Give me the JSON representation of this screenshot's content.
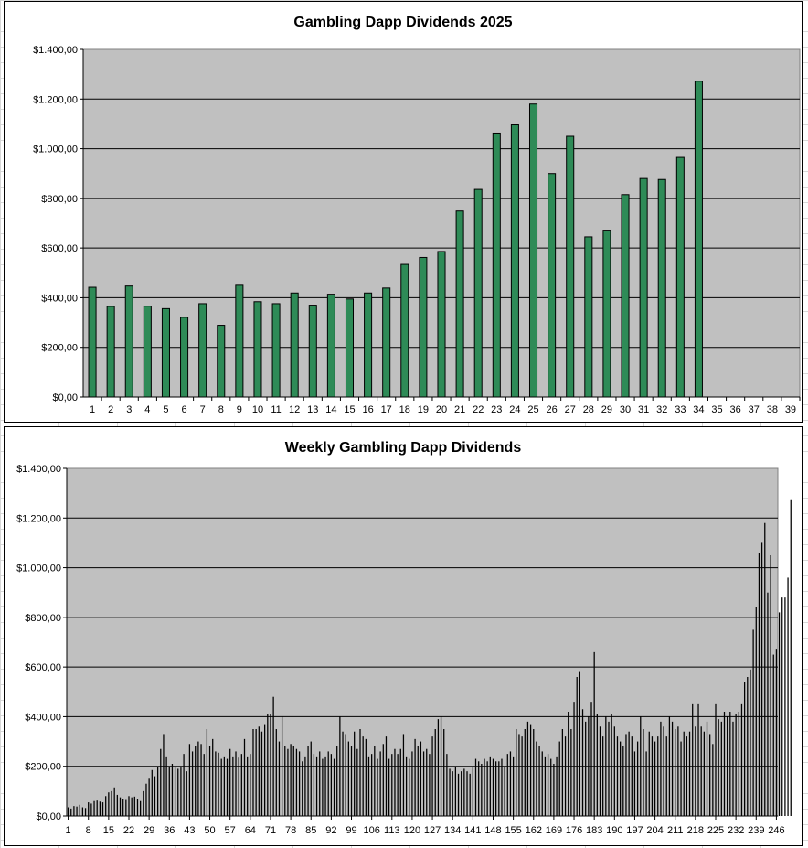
{
  "chart_data": [
    {
      "type": "bar",
      "title": "Gambling Dapp Dividends 2025",
      "xlabel": "",
      "ylabel": "",
      "ylim": [
        0,
        1400
      ],
      "y_ticks": [
        "$0,00",
        "$200,00",
        "$400,00",
        "$600,00",
        "$800,00",
        "$1.000,00",
        "$1.200,00",
        "$1.400,00"
      ],
      "categories": [
        "1",
        "2",
        "3",
        "4",
        "5",
        "6",
        "7",
        "8",
        "9",
        "10",
        "11",
        "12",
        "13",
        "14",
        "15",
        "16",
        "17",
        "18",
        "19",
        "20",
        "21",
        "22",
        "23",
        "24",
        "25",
        "26",
        "27",
        "28",
        "29",
        "30",
        "31",
        "32",
        "33",
        "34",
        "35",
        "36",
        "37",
        "38",
        "39"
      ],
      "values": [
        442,
        365,
        447,
        366,
        356,
        321,
        376,
        289,
        450,
        384,
        376,
        419,
        370,
        414,
        395,
        419,
        439,
        534,
        562,
        586,
        749,
        836,
        1063,
        1096,
        1180,
        900,
        1050,
        645,
        672,
        815,
        880,
        876,
        965,
        1272,
        null,
        null,
        null,
        null,
        null
      ],
      "bar_color": "#2e8b57",
      "plot_bg": "#c0c0c0",
      "grid": true,
      "legend": "none"
    },
    {
      "type": "bar",
      "title": "Weekly Gambling Dapp Dividends",
      "xlabel": "",
      "ylabel": "",
      "ylim": [
        0,
        1400
      ],
      "y_ticks": [
        "$0,00",
        "$200,00",
        "$400,00",
        "$600,00",
        "$800,00",
        "$1.000,00",
        "$1.200,00",
        "$1.400,00"
      ],
      "x_tick_labels": [
        "1",
        "8",
        "15",
        "22",
        "29",
        "36",
        "43",
        "50",
        "57",
        "64",
        "71",
        "78",
        "85",
        "92",
        "99",
        "106",
        "113",
        "120",
        "127",
        "134",
        "141",
        "148",
        "155",
        "162",
        "169",
        "176",
        "183",
        "190",
        "197",
        "204",
        "211",
        "218",
        "225",
        "232",
        "239",
        "246"
      ],
      "x_count": 246,
      "values": [
        35,
        30,
        40,
        38,
        45,
        35,
        32,
        55,
        50,
        60,
        62,
        58,
        55,
        80,
        95,
        100,
        115,
        85,
        75,
        70,
        68,
        80,
        75,
        78,
        70,
        60,
        100,
        130,
        150,
        185,
        160,
        200,
        270,
        330,
        240,
        200,
        210,
        200,
        190,
        195,
        250,
        180,
        290,
        260,
        280,
        300,
        290,
        250,
        350,
        280,
        310,
        260,
        255,
        230,
        240,
        230,
        270,
        240,
        260,
        235,
        250,
        310,
        240,
        250,
        350,
        350,
        360,
        340,
        370,
        410,
        410,
        480,
        350,
        300,
        400,
        280,
        270,
        290,
        280,
        270,
        260,
        220,
        240,
        280,
        300,
        250,
        240,
        260,
        230,
        240,
        260,
        250,
        230,
        280,
        400,
        340,
        330,
        300,
        280,
        340,
        270,
        350,
        320,
        310,
        240,
        250,
        280,
        230,
        260,
        290,
        320,
        230,
        250,
        270,
        250,
        270,
        330,
        240,
        230,
        260,
        310,
        280,
        300,
        260,
        270,
        250,
        320,
        350,
        390,
        400,
        350,
        250,
        190,
        180,
        200,
        170,
        180,
        190,
        180,
        170,
        200,
        230,
        220,
        210,
        230,
        220,
        240,
        230,
        220,
        220,
        230,
        200,
        250,
        260,
        240,
        350,
        330,
        320,
        350,
        380,
        370,
        350,
        300,
        280,
        260,
        240,
        250,
        230,
        210,
        240,
        300,
        350,
        320,
        420,
        350,
        460,
        560,
        580,
        430,
        380,
        400,
        460,
        660,
        410,
        360,
        320,
        400,
        380,
        410,
        360,
        320,
        300,
        280,
        330,
        340,
        320,
        260,
        300,
        400,
        350,
        260,
        340,
        320,
        300,
        320,
        380,
        360,
        320,
        400,
        380,
        350,
        360,
        300,
        340,
        320,
        340,
        450,
        360,
        450,
        360,
        340,
        380,
        330,
        290,
        450,
        390,
        380,
        420,
        400,
        420,
        380,
        410,
        420,
        450,
        540,
        560,
        590,
        750,
        840,
        1060,
        1100,
        1180,
        900,
        1050,
        650,
        670,
        820,
        880,
        880,
        960,
        1272
      ],
      "bar_color": "#000000",
      "plot_bg": "#c0c0c0",
      "grid": true,
      "legend": "none"
    }
  ]
}
